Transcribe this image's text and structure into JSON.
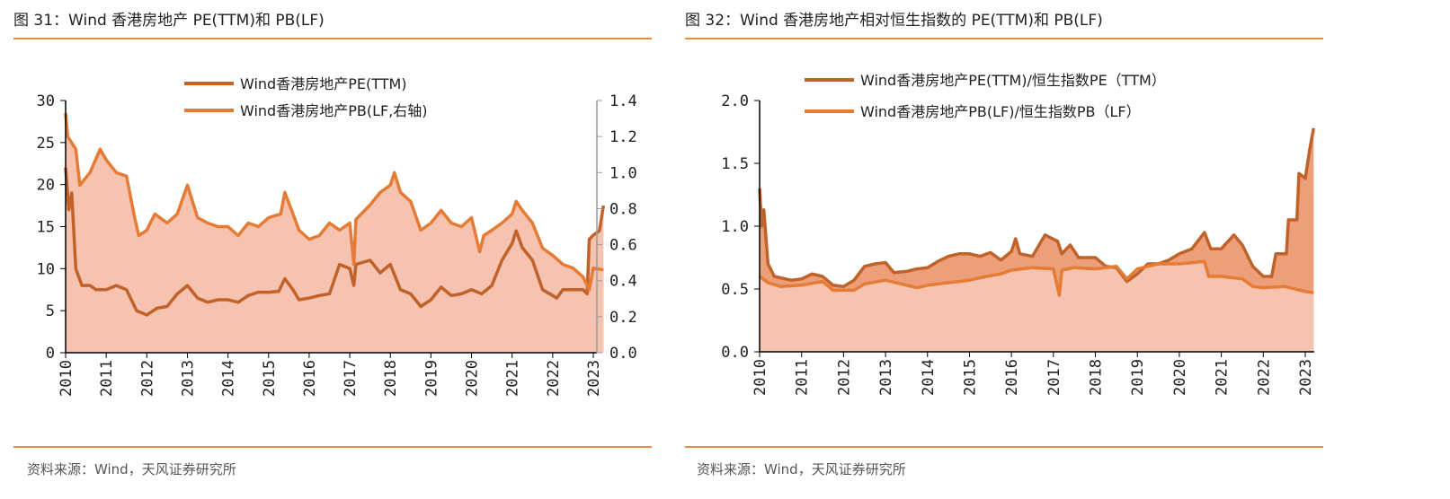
{
  "colors": {
    "accent": "#f08a3c",
    "pe_line": "#c0622a",
    "pb_line": "#e57b34",
    "fill_light": "#f5c3b0",
    "fill_dark": "#ec9f78"
  },
  "panels": [
    {
      "title": "图 31：Wind 香港房地产 PE(TTM)和 PB(LF)",
      "source": "资料来源：Wind，天风证券研究所"
    },
    {
      "title": "图 32：Wind 香港房地产相对恒生指数的 PE(TTM)和 PB(LF)",
      "source": "资料来源：Wind，天风证券研究所"
    }
  ],
  "chart_data": [
    {
      "type": "area",
      "title": "Wind 香港房地产 PE(TTM)和 PB(LF)",
      "x_ticks": [
        "2010",
        "2011",
        "2012",
        "2013",
        "2014",
        "2015",
        "2016",
        "2017",
        "2018",
        "2019",
        "2020",
        "2021",
        "2022",
        "2023"
      ],
      "y_left": {
        "range": [
          0,
          30
        ],
        "ticks": [
          "0",
          "5",
          "10",
          "15",
          "20",
          "25",
          "30"
        ]
      },
      "y_right": {
        "range": [
          0,
          1.4
        ],
        "ticks": [
          "0.0",
          "0.2",
          "0.4",
          "0.6",
          "0.8",
          "1.0",
          "1.2",
          "1.4"
        ]
      },
      "legend": "top-center",
      "series": [
        {
          "name": "Wind香港房地产PE(TTM)",
          "axis": "left",
          "color": "#c0622a",
          "points": [
            [
              2010.0,
              22
            ],
            [
              2010.08,
              17
            ],
            [
              2010.15,
              19
            ],
            [
              2010.25,
              10
            ],
            [
              2010.4,
              8
            ],
            [
              2010.6,
              8
            ],
            [
              2010.75,
              7.5
            ],
            [
              2011.0,
              7.5
            ],
            [
              2011.25,
              8
            ],
            [
              2011.5,
              7.5
            ],
            [
              2011.75,
              5
            ],
            [
              2012.0,
              4.5
            ],
            [
              2012.25,
              5.3
            ],
            [
              2012.5,
              5.5
            ],
            [
              2012.75,
              7
            ],
            [
              2013.0,
              8
            ],
            [
              2013.25,
              6.5
            ],
            [
              2013.5,
              6
            ],
            [
              2013.75,
              6.3
            ],
            [
              2014.0,
              6.3
            ],
            [
              2014.25,
              6
            ],
            [
              2014.5,
              6.8
            ],
            [
              2014.75,
              7.2
            ],
            [
              2015.0,
              7.2
            ],
            [
              2015.25,
              7.3
            ],
            [
              2015.4,
              8.8
            ],
            [
              2015.6,
              7.5
            ],
            [
              2015.75,
              6.3
            ],
            [
              2016.0,
              6.5
            ],
            [
              2016.25,
              6.8
            ],
            [
              2016.5,
              7
            ],
            [
              2016.75,
              10.5
            ],
            [
              2017.0,
              10
            ],
            [
              2017.1,
              8
            ],
            [
              2017.15,
              10.5
            ],
            [
              2017.5,
              11
            ],
            [
              2017.75,
              9.5
            ],
            [
              2018.0,
              10.5
            ],
            [
              2018.25,
              7.5
            ],
            [
              2018.5,
              7
            ],
            [
              2018.75,
              5.5
            ],
            [
              2019.0,
              6.3
            ],
            [
              2019.25,
              7.8
            ],
            [
              2019.5,
              6.8
            ],
            [
              2019.75,
              7
            ],
            [
              2020.0,
              7.5
            ],
            [
              2020.25,
              7
            ],
            [
              2020.5,
              8
            ],
            [
              2020.75,
              11
            ],
            [
              2021.0,
              13
            ],
            [
              2021.1,
              14.5
            ],
            [
              2021.25,
              12.5
            ],
            [
              2021.5,
              11
            ],
            [
              2021.75,
              7.5
            ],
            [
              2022.0,
              6.8
            ],
            [
              2022.1,
              6.5
            ],
            [
              2022.25,
              7.5
            ],
            [
              2022.5,
              7.5
            ],
            [
              2022.75,
              7.5
            ],
            [
              2022.85,
              7
            ],
            [
              2022.9,
              13.5
            ],
            [
              2023.0,
              14
            ],
            [
              2023.15,
              14.5
            ],
            [
              2023.25,
              17.5
            ]
          ]
        },
        {
          "name": "Wind香港房地产PB(LF,右轴)",
          "axis": "right",
          "color": "#e57b34",
          "points": [
            [
              2010.0,
              1.33
            ],
            [
              2010.05,
              1.2
            ],
            [
              2010.25,
              1.13
            ],
            [
              2010.35,
              0.93
            ],
            [
              2010.6,
              1.0
            ],
            [
              2010.85,
              1.13
            ],
            [
              2011.0,
              1.07
            ],
            [
              2011.25,
              1.0
            ],
            [
              2011.5,
              0.98
            ],
            [
              2011.7,
              0.75
            ],
            [
              2011.8,
              0.65
            ],
            [
              2012.0,
              0.68
            ],
            [
              2012.2,
              0.77
            ],
            [
              2012.5,
              0.72
            ],
            [
              2012.75,
              0.77
            ],
            [
              2013.0,
              0.93
            ],
            [
              2013.25,
              0.75
            ],
            [
              2013.5,
              0.72
            ],
            [
              2013.75,
              0.7
            ],
            [
              2014.0,
              0.7
            ],
            [
              2014.25,
              0.65
            ],
            [
              2014.5,
              0.72
            ],
            [
              2014.75,
              0.7
            ],
            [
              2015.0,
              0.75
            ],
            [
              2015.3,
              0.77
            ],
            [
              2015.4,
              0.89
            ],
            [
              2015.6,
              0.77
            ],
            [
              2015.75,
              0.68
            ],
            [
              2016.0,
              0.63
            ],
            [
              2016.25,
              0.65
            ],
            [
              2016.5,
              0.72
            ],
            [
              2016.75,
              0.68
            ],
            [
              2017.0,
              0.72
            ],
            [
              2017.1,
              0.49
            ],
            [
              2017.15,
              0.74
            ],
            [
              2017.5,
              0.82
            ],
            [
              2017.75,
              0.89
            ],
            [
              2018.0,
              0.93
            ],
            [
              2018.1,
              1.0
            ],
            [
              2018.25,
              0.89
            ],
            [
              2018.5,
              0.84
            ],
            [
              2018.75,
              0.68
            ],
            [
              2019.0,
              0.72
            ],
            [
              2019.25,
              0.79
            ],
            [
              2019.5,
              0.72
            ],
            [
              2019.75,
              0.7
            ],
            [
              2020.0,
              0.75
            ],
            [
              2020.2,
              0.56
            ],
            [
              2020.3,
              0.65
            ],
            [
              2020.5,
              0.68
            ],
            [
              2020.75,
              0.72
            ],
            [
              2021.0,
              0.77
            ],
            [
              2021.1,
              0.84
            ],
            [
              2021.25,
              0.79
            ],
            [
              2021.5,
              0.72
            ],
            [
              2021.75,
              0.58
            ],
            [
              2022.0,
              0.54
            ],
            [
              2022.25,
              0.49
            ],
            [
              2022.5,
              0.47
            ],
            [
              2022.75,
              0.42
            ],
            [
              2022.9,
              0.35
            ],
            [
              2023.0,
              0.47
            ],
            [
              2023.25,
              0.46
            ]
          ]
        }
      ]
    },
    {
      "type": "area",
      "title": "Wind 香港房地产相对恒生指数的 PE(TTM)和 PB(LF)",
      "x_ticks": [
        "2010",
        "2011",
        "2012",
        "2013",
        "2014",
        "2015",
        "2016",
        "2017",
        "2018",
        "2019",
        "2020",
        "2021",
        "2022",
        "2023"
      ],
      "y_left": {
        "range": [
          0,
          2.0
        ],
        "ticks": [
          "0.0",
          "0.5",
          "1.0",
          "1.5",
          "2.0"
        ]
      },
      "legend": "top-center",
      "series": [
        {
          "name": "Wind香港房地产PE(TTM)/恒生指数PE（TTM）",
          "axis": "left",
          "color": "#c0622a",
          "points": [
            [
              2010.0,
              1.3
            ],
            [
              2010.05,
              1.0
            ],
            [
              2010.1,
              1.13
            ],
            [
              2010.2,
              0.7
            ],
            [
              2010.35,
              0.6
            ],
            [
              2010.75,
              0.57
            ],
            [
              2011.0,
              0.58
            ],
            [
              2011.25,
              0.62
            ],
            [
              2011.5,
              0.6
            ],
            [
              2011.75,
              0.53
            ],
            [
              2012.0,
              0.52
            ],
            [
              2012.25,
              0.57
            ],
            [
              2012.5,
              0.68
            ],
            [
              2012.75,
              0.7
            ],
            [
              2013.0,
              0.71
            ],
            [
              2013.2,
              0.63
            ],
            [
              2013.5,
              0.64
            ],
            [
              2013.75,
              0.66
            ],
            [
              2014.0,
              0.67
            ],
            [
              2014.25,
              0.72
            ],
            [
              2014.5,
              0.76
            ],
            [
              2014.75,
              0.78
            ],
            [
              2015.0,
              0.78
            ],
            [
              2015.25,
              0.76
            ],
            [
              2015.5,
              0.79
            ],
            [
              2015.75,
              0.73
            ],
            [
              2016.0,
              0.8
            ],
            [
              2016.1,
              0.9
            ],
            [
              2016.2,
              0.78
            ],
            [
              2016.5,
              0.76
            ],
            [
              2016.8,
              0.93
            ],
            [
              2017.1,
              0.88
            ],
            [
              2017.2,
              0.78
            ],
            [
              2017.4,
              0.85
            ],
            [
              2017.6,
              0.75
            ],
            [
              2018.0,
              0.75
            ],
            [
              2018.25,
              0.68
            ],
            [
              2018.5,
              0.67
            ],
            [
              2018.75,
              0.56
            ],
            [
              2019.0,
              0.62
            ],
            [
              2019.25,
              0.7
            ],
            [
              2019.5,
              0.7
            ],
            [
              2019.75,
              0.73
            ],
            [
              2020.0,
              0.78
            ],
            [
              2020.3,
              0.82
            ],
            [
              2020.6,
              0.95
            ],
            [
              2020.75,
              0.82
            ],
            [
              2021.0,
              0.82
            ],
            [
              2021.3,
              0.93
            ],
            [
              2021.5,
              0.85
            ],
            [
              2021.75,
              0.68
            ],
            [
              2022.0,
              0.6
            ],
            [
              2022.2,
              0.6
            ],
            [
              2022.3,
              0.78
            ],
            [
              2022.55,
              0.78
            ],
            [
              2022.6,
              1.05
            ],
            [
              2022.8,
              1.05
            ],
            [
              2022.85,
              1.42
            ],
            [
              2023.0,
              1.38
            ],
            [
              2023.1,
              1.6
            ],
            [
              2023.2,
              1.78
            ]
          ]
        },
        {
          "name": "Wind香港房地产PB(LF)/恒生指数PB（LF）",
          "axis": "left",
          "color": "#e57b34",
          "points": [
            [
              2010.0,
              0.6
            ],
            [
              2010.2,
              0.55
            ],
            [
              2010.5,
              0.52
            ],
            [
              2011.0,
              0.53
            ],
            [
              2011.5,
              0.56
            ],
            [
              2011.75,
              0.49
            ],
            [
              2012.25,
              0.49
            ],
            [
              2012.5,
              0.54
            ],
            [
              2013.0,
              0.57
            ],
            [
              2013.25,
              0.55
            ],
            [
              2013.75,
              0.51
            ],
            [
              2014.0,
              0.53
            ],
            [
              2014.5,
              0.55
            ],
            [
              2015.0,
              0.57
            ],
            [
              2015.4,
              0.6
            ],
            [
              2015.75,
              0.62
            ],
            [
              2016.0,
              0.65
            ],
            [
              2016.5,
              0.67
            ],
            [
              2017.0,
              0.66
            ],
            [
              2017.14,
              0.45
            ],
            [
              2017.2,
              0.65
            ],
            [
              2017.5,
              0.67
            ],
            [
              2018.0,
              0.66
            ],
            [
              2018.5,
              0.68
            ],
            [
              2018.75,
              0.58
            ],
            [
              2019.0,
              0.66
            ],
            [
              2019.5,
              0.7
            ],
            [
              2020.0,
              0.7
            ],
            [
              2020.6,
              0.72
            ],
            [
              2020.7,
              0.6
            ],
            [
              2021.0,
              0.6
            ],
            [
              2021.5,
              0.58
            ],
            [
              2021.75,
              0.52
            ],
            [
              2022.0,
              0.51
            ],
            [
              2022.5,
              0.52
            ],
            [
              2023.0,
              0.48
            ],
            [
              2023.2,
              0.47
            ]
          ]
        }
      ]
    }
  ]
}
